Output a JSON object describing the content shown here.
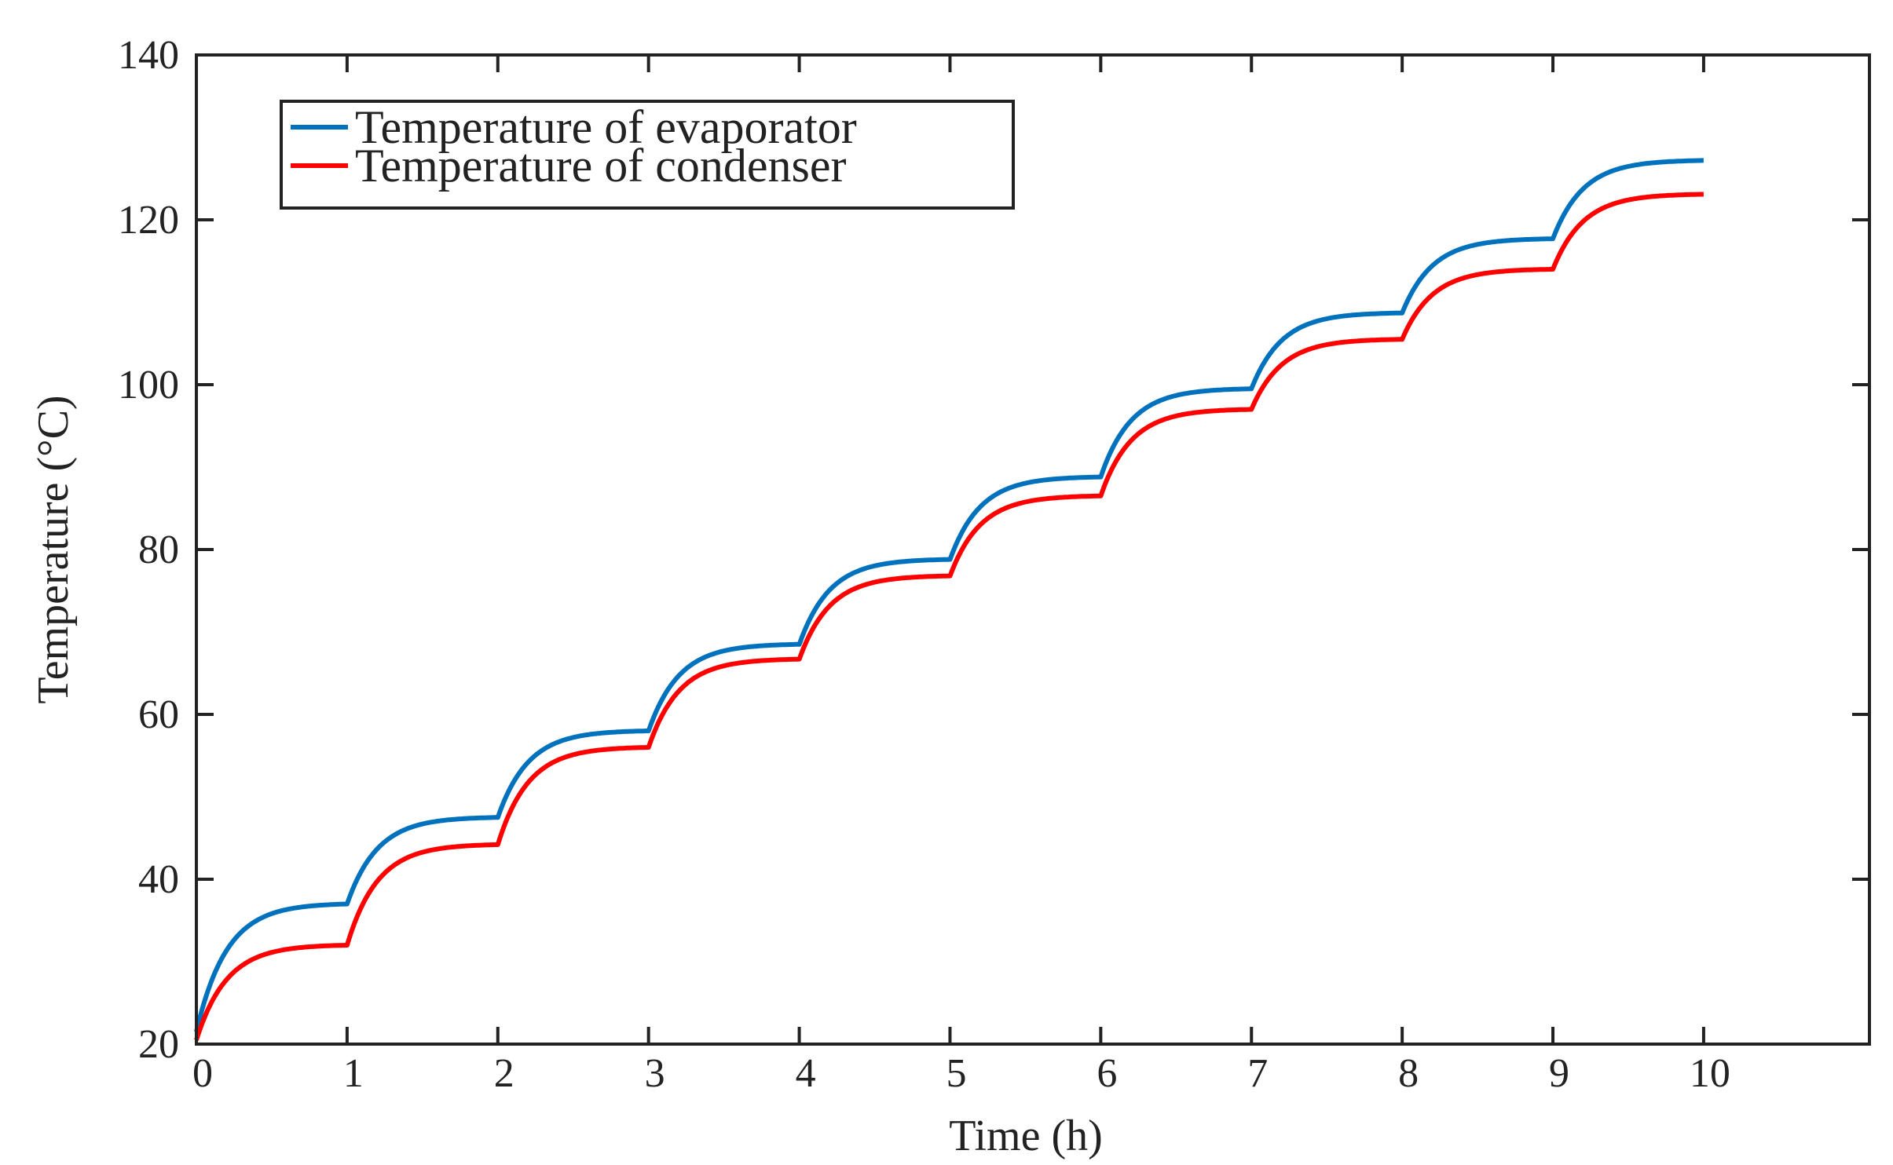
{
  "chart_data": {
    "type": "line",
    "title": "",
    "xlabel": "Time (h)",
    "ylabel": "Temperature (°C)",
    "xlim": [
      0,
      11.1
    ],
    "ylim": [
      20,
      140
    ],
    "xticks": [
      0,
      1,
      2,
      3,
      4,
      5,
      6,
      7,
      8,
      9,
      10
    ],
    "yticks": [
      20,
      40,
      60,
      80,
      100,
      120,
      140
    ],
    "grid": false,
    "legend": "top-left",
    "series": [
      {
        "name": "Temperature of evaporator",
        "color": "#0072bd",
        "steps": [
          {
            "t0": 0,
            "start": 21.5,
            "end": 37.0
          },
          {
            "t0": 1,
            "start": 37.0,
            "end": 47.5
          },
          {
            "t0": 2,
            "start": 47.5,
            "end": 58.0
          },
          {
            "t0": 3,
            "start": 58.0,
            "end": 68.5
          },
          {
            "t0": 4,
            "start": 68.5,
            "end": 78.8
          },
          {
            "t0": 5,
            "start": 78.8,
            "end": 88.8
          },
          {
            "t0": 6,
            "start": 88.8,
            "end": 99.5
          },
          {
            "t0": 7,
            "start": 99.5,
            "end": 108.7
          },
          {
            "t0": 8,
            "start": 108.7,
            "end": 117.7
          },
          {
            "t0": 9,
            "start": 117.7,
            "end": 127.2
          }
        ]
      },
      {
        "name": "Temperature of condenser",
        "color": "#ff0000",
        "steps": [
          {
            "t0": 0,
            "start": 20.5,
            "end": 32.0
          },
          {
            "t0": 1,
            "start": 32.0,
            "end": 44.2
          },
          {
            "t0": 2,
            "start": 44.2,
            "end": 56.0
          },
          {
            "t0": 3,
            "start": 56.0,
            "end": 66.7
          },
          {
            "t0": 4,
            "start": 66.7,
            "end": 76.8
          },
          {
            "t0": 5,
            "start": 76.8,
            "end": 86.5
          },
          {
            "t0": 6,
            "start": 86.5,
            "end": 97.0
          },
          {
            "t0": 7,
            "start": 97.0,
            "end": 105.5
          },
          {
            "t0": 8,
            "start": 105.5,
            "end": 114.0
          },
          {
            "t0": 9,
            "start": 114.0,
            "end": 123.1
          }
        ]
      }
    ]
  }
}
